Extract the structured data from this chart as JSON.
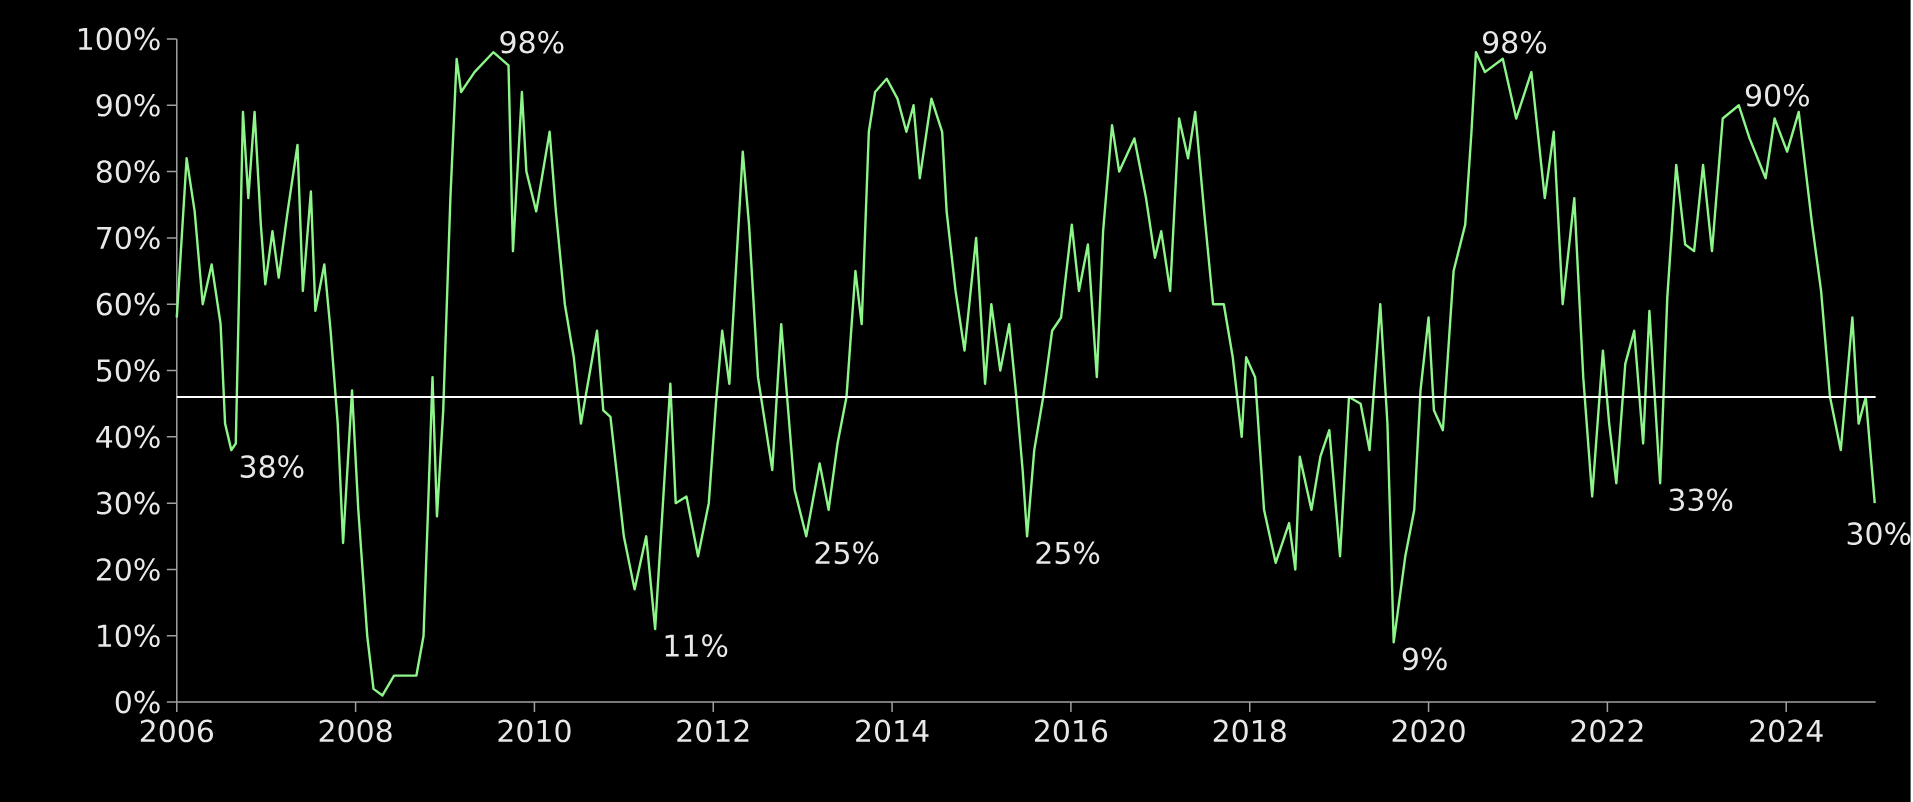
{
  "chart_data": {
    "type": "line",
    "x": [
      2006.0,
      2006.11,
      2006.2,
      2006.29,
      2006.39,
      2006.49,
      2006.54,
      2006.61,
      2006.66,
      2006.74,
      2006.8,
      2006.87,
      2006.94,
      2006.99,
      2007.07,
      2007.14,
      2007.24,
      2007.35,
      2007.41,
      2007.5,
      2007.55,
      2007.65,
      2007.72,
      2007.8,
      2007.86,
      2007.96,
      2008.03,
      2008.13,
      2008.2,
      2008.3,
      2008.43,
      2008.68,
      2008.76,
      2008.81,
      2008.86,
      2008.91,
      2008.98,
      2009.06,
      2009.13,
      2009.18,
      2009.33,
      2009.54,
      2009.71,
      2009.76,
      2009.86,
      2009.91,
      2010.02,
      2010.17,
      2010.24,
      2010.34,
      2010.44,
      2010.52,
      2010.7,
      2010.77,
      2010.85,
      2011.0,
      2011.12,
      2011.25,
      2011.35,
      2011.52,
      2011.58,
      2011.7,
      2011.83,
      2011.95,
      2012.03,
      2012.1,
      2012.18,
      2012.33,
      2012.4,
      2012.5,
      2012.66,
      2012.76,
      2012.91,
      2013.04,
      2013.19,
      2013.29,
      2013.39,
      2013.49,
      2013.59,
      2013.66,
      2013.74,
      2013.81,
      2013.94,
      2014.06,
      2014.16,
      2014.24,
      2014.31,
      2014.44,
      2014.56,
      2014.61,
      2014.71,
      2014.81,
      2014.94,
      2015.04,
      2015.11,
      2015.21,
      2015.31,
      2015.39,
      2015.46,
      2015.51,
      2015.59,
      2015.69,
      2015.79,
      2015.89,
      2016.01,
      2016.09,
      2016.19,
      2016.29,
      2016.36,
      2016.46,
      2016.54,
      2016.71,
      2016.84,
      2016.94,
      2017.01,
      2017.11,
      2017.21,
      2017.31,
      2017.39,
      2017.49,
      2017.59,
      2017.71,
      2017.81,
      2017.91,
      2017.96,
      2018.06,
      2018.16,
      2018.29,
      2018.44,
      2018.51,
      2018.56,
      2018.69,
      2018.79,
      2018.89,
      2019.01,
      2019.11,
      2019.24,
      2019.34,
      2019.46,
      2019.54,
      2019.61,
      2019.74,
      2019.84,
      2019.91,
      2020.0,
      2020.06,
      2020.16,
      2020.28,
      2020.41,
      2020.48,
      2020.53,
      2020.63,
      2020.83,
      2020.98,
      2021.15,
      2021.3,
      2021.4,
      2021.5,
      2021.63,
      2021.73,
      2021.83,
      2021.95,
      2022.02,
      2022.1,
      2022.2,
      2022.3,
      2022.4,
      2022.47,
      2022.59,
      2022.67,
      2022.77,
      2022.87,
      2022.97,
      2023.07,
      2023.17,
      2023.29,
      2023.47,
      2023.59,
      2023.77,
      2023.87,
      2024.01,
      2024.14,
      2024.29,
      2024.39,
      2024.49,
      2024.61,
      2024.74,
      2024.81,
      2024.89,
      2024.99
    ],
    "values": [
      58,
      82,
      74,
      60,
      66,
      57,
      42,
      38,
      39,
      89,
      76,
      89,
      72,
      63,
      71,
      64,
      74,
      84,
      62,
      77,
      59,
      66,
      56,
      42,
      24,
      47,
      29,
      10,
      2,
      1,
      4,
      4,
      10,
      29,
      49,
      28,
      44,
      76,
      97,
      92,
      95,
      98,
      96,
      68,
      92,
      80,
      74,
      86,
      74,
      60,
      52,
      42,
      56,
      44,
      43,
      25,
      17,
      25,
      11,
      48,
      30,
      31,
      22,
      30,
      45,
      56,
      48,
      83,
      72,
      49,
      35,
      57,
      32,
      25,
      36,
      29,
      39,
      46,
      65,
      57,
      86,
      92,
      94,
      91,
      86,
      90,
      79,
      91,
      86,
      74,
      62,
      53,
      70,
      48,
      60,
      50,
      57,
      46,
      35,
      25,
      38,
      46,
      56,
      58,
      72,
      62,
      69,
      49,
      71,
      87,
      80,
      85,
      76,
      67,
      71,
      62,
      88,
      82,
      89,
      74,
      60,
      60,
      52,
      40,
      52,
      49,
      29,
      21,
      27,
      20,
      37,
      29,
      37,
      41,
      22,
      46,
      45,
      38,
      60,
      42,
      9,
      22,
      29,
      47,
      58,
      44,
      41,
      65,
      72,
      86,
      98,
      95,
      97,
      88,
      95,
      76,
      86,
      60,
      76,
      49,
      31,
      53,
      42,
      33,
      51,
      56,
      39,
      59,
      33,
      61,
      81,
      69,
      68,
      81,
      68,
      88,
      90,
      85,
      79,
      88,
      83,
      89,
      72,
      62,
      46,
      38,
      58,
      42,
      46,
      30
    ],
    "color": "#8ef58a",
    "xlim": [
      2006,
      2025
    ],
    "ylim": [
      0,
      100
    ],
    "xticks": [
      2006,
      2008,
      2010,
      2012,
      2014,
      2016,
      2018,
      2020,
      2022,
      2024
    ],
    "yticks": [
      {
        "value": 0,
        "label": "0%"
      },
      {
        "value": 10,
        "label": "10%"
      },
      {
        "value": 20,
        "label": "20%"
      },
      {
        "value": 30,
        "label": "30%"
      },
      {
        "value": 40,
        "label": "40%"
      },
      {
        "value": 50,
        "label": "50%"
      },
      {
        "value": 60,
        "label": "60%"
      },
      {
        "value": 70,
        "label": "70%"
      },
      {
        "value": 80,
        "label": "80%"
      },
      {
        "value": 90,
        "label": "90%"
      },
      {
        "value": 100,
        "label": "100%"
      }
    ],
    "ref_lines": [
      {
        "axis": "y",
        "value": 46,
        "color": "#ffffff"
      }
    ],
    "annotations": [
      {
        "text": "38%",
        "x": 2006.61,
        "y": 38
      },
      {
        "text": "98%",
        "x": 2009.54,
        "y": 98
      },
      {
        "text": "11%",
        "x": 2011.35,
        "y": 11
      },
      {
        "text": "25%",
        "x": 2013.04,
        "y": 25
      },
      {
        "text": "25%",
        "x": 2015.51,
        "y": 25
      },
      {
        "text": "9%",
        "x": 2019.61,
        "y": 9
      },
      {
        "text": "98%",
        "x": 2020.53,
        "y": 98
      },
      {
        "text": "33%",
        "x": 2022.59,
        "y": 33
      },
      {
        "text": "90%",
        "x": 2023.47,
        "y": 90
      },
      {
        "text": "30%",
        "x": 2024.99,
        "y": 30
      }
    ]
  }
}
